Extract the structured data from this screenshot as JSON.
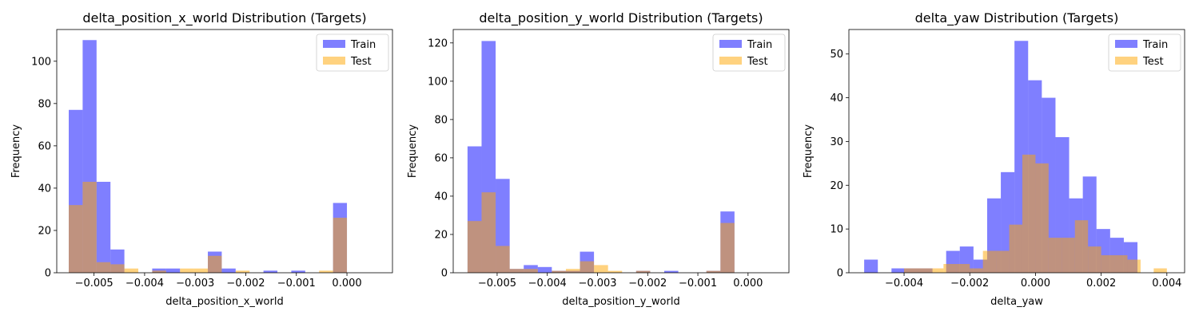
{
  "colors": {
    "train": "#0000ff",
    "test": "#ffa500",
    "alpha": 0.5
  },
  "legend": {
    "train_label": "Train",
    "test_label": "Test",
    "loc": "upper right"
  },
  "chart_data": [
    {
      "type": "histogram",
      "title": "delta_position_x_world Distribution (Targets)",
      "xlabel": "delta_position_x_world",
      "ylabel": "Frequency",
      "xlim": [
        -0.005737,
        0.0009
      ],
      "ylim": [
        0,
        115
      ],
      "xticks": [
        -0.005,
        -0.004,
        -0.003,
        -0.002,
        -0.001,
        0.0
      ],
      "xticklabels": [
        "−0.005",
        "−0.004",
        "−0.003",
        "−0.002",
        "−0.001",
        "0.000"
      ],
      "yticks": [
        0,
        20,
        40,
        60,
        80,
        100
      ],
      "yticklabels": [
        "0",
        "20",
        "40",
        "60",
        "80",
        "100"
      ],
      "legend_loc": "upper right",
      "series": [
        {
          "name": "Train",
          "bin_edges": [
            -0.0055,
            -0.005225,
            -0.00495,
            -0.004675,
            -0.0044,
            -0.004125,
            -0.00385,
            -0.003575,
            -0.0033,
            -0.003025,
            -0.00275,
            -0.002475,
            -0.0022,
            -0.001925,
            -0.00165,
            -0.001375,
            -0.0011,
            -0.000825,
            -0.00055,
            -0.000275,
            0.0
          ],
          "counts": [
            77,
            110,
            43,
            11,
            0,
            0,
            2,
            2,
            0,
            0,
            10,
            2,
            0,
            0,
            1,
            0,
            1,
            0,
            0,
            33
          ]
        },
        {
          "name": "Test",
          "bin_edges": [
            -0.0055,
            -0.005225,
            -0.00495,
            -0.004675,
            -0.0044,
            -0.004125,
            -0.00385,
            -0.003575,
            -0.0033,
            -0.003025,
            -0.00275,
            -0.002475,
            -0.0022,
            -0.001925,
            -0.00165,
            -0.001375,
            -0.0011,
            -0.000825,
            -0.00055,
            -0.000275,
            0.0
          ],
          "counts": [
            32,
            43,
            5,
            4,
            2,
            0,
            1,
            0,
            2,
            2,
            8,
            0,
            1,
            0,
            0,
            0,
            0,
            0,
            1,
            26
          ]
        }
      ]
    },
    {
      "type": "histogram",
      "title": "delta_position_y_world Distribution (Targets)",
      "xlabel": "delta_position_y_world",
      "ylabel": "Frequency",
      "xlim": [
        -0.005875,
        0.000815
      ],
      "ylim": [
        0,
        127
      ],
      "xticks": [
        -0.005,
        -0.004,
        -0.003,
        -0.002,
        -0.001,
        0.0
      ],
      "xticklabels": [
        "−0.005",
        "−0.004",
        "−0.003",
        "−0.002",
        "−0.001",
        "0.000"
      ],
      "yticks": [
        0,
        20,
        40,
        60,
        80,
        100,
        120
      ],
      "yticklabels": [
        "0",
        "20",
        "40",
        "60",
        "80",
        "100",
        "120"
      ],
      "legend_loc": "upper right",
      "series": [
        {
          "name": "Train",
          "bin_edges": [
            -0.00559,
            -0.00531,
            -0.00503,
            -0.00475,
            -0.00447,
            -0.00419,
            -0.00391,
            -0.00363,
            -0.00335,
            -0.00307,
            -0.00279,
            -0.00251,
            -0.00223,
            -0.00195,
            -0.00167,
            -0.00139,
            -0.00111,
            -0.00083,
            -0.00055,
            -0.00027,
            0.0
          ],
          "counts": [
            66,
            121,
            49,
            2,
            4,
            3,
            1,
            1,
            11,
            0,
            0,
            0,
            1,
            0,
            1,
            0,
            0,
            1,
            32,
            0
          ]
        },
        {
          "name": "Test",
          "bin_edges": [
            -0.00559,
            -0.00531,
            -0.00503,
            -0.00475,
            -0.00447,
            -0.00419,
            -0.00391,
            -0.00363,
            -0.00335,
            -0.00307,
            -0.00279,
            -0.00251,
            -0.00223,
            -0.00195,
            -0.00167,
            -0.00139,
            -0.00111,
            -0.00083,
            -0.00055,
            -0.00027,
            0.0
          ],
          "counts": [
            27,
            42,
            14,
            2,
            2,
            0,
            1,
            2,
            6,
            4,
            1,
            0,
            1,
            0,
            0,
            0,
            0,
            1,
            26,
            0
          ]
        }
      ]
    },
    {
      "type": "histogram",
      "title": "delta_yaw Distribution (Targets)",
      "xlabel": "delta_yaw",
      "ylabel": "Frequency",
      "xlim": [
        -0.00568,
        0.00454
      ],
      "ylim": [
        0,
        55.6
      ],
      "xticks": [
        -0.004,
        -0.002,
        0.0,
        0.002,
        0.004
      ],
      "xticklabels": [
        "−0.004",
        "−0.002",
        "0.000",
        "0.002",
        "0.004"
      ],
      "yticks": [
        0,
        10,
        20,
        30,
        40,
        50
      ],
      "yticklabels": [
        "0",
        "10",
        "20",
        "30",
        "40",
        "50"
      ],
      "legend_loc": "upper right",
      "series": [
        {
          "name": "Train",
          "bin_edges": [
            -0.005215,
            -0.004799,
            -0.004383,
            -0.003967,
            -0.003551,
            -0.003135,
            -0.002719,
            -0.002303,
            -0.001887,
            -0.001471,
            -0.001055,
            -0.000639,
            -0.000223,
            0.000193,
            0.000609,
            0.001025,
            0.001441,
            0.001857,
            0.002273,
            0.002689,
            0.003105
          ],
          "counts": [
            3,
            0,
            1,
            1,
            1,
            0,
            5,
            6,
            3,
            17,
            23,
            53,
            44,
            40,
            31,
            17,
            22,
            10,
            8,
            7
          ]
        },
        {
          "name": "Test",
          "bin_edges": [
            -0.004,
            -0.0036,
            -0.0032,
            -0.0028,
            -0.0024,
            -0.002,
            -0.0016,
            -0.0012,
            -0.0008,
            -0.0004,
            0.0,
            0.0004,
            0.0008,
            0.0012,
            0.0016,
            0.002,
            0.0024,
            0.0028,
            0.0032,
            0.0036,
            0.004
          ],
          "counts": [
            1,
            1,
            1,
            2,
            2,
            1,
            5,
            5,
            11,
            27,
            25,
            8,
            8,
            12,
            6,
            4,
            4,
            3,
            0,
            1
          ]
        }
      ]
    }
  ]
}
